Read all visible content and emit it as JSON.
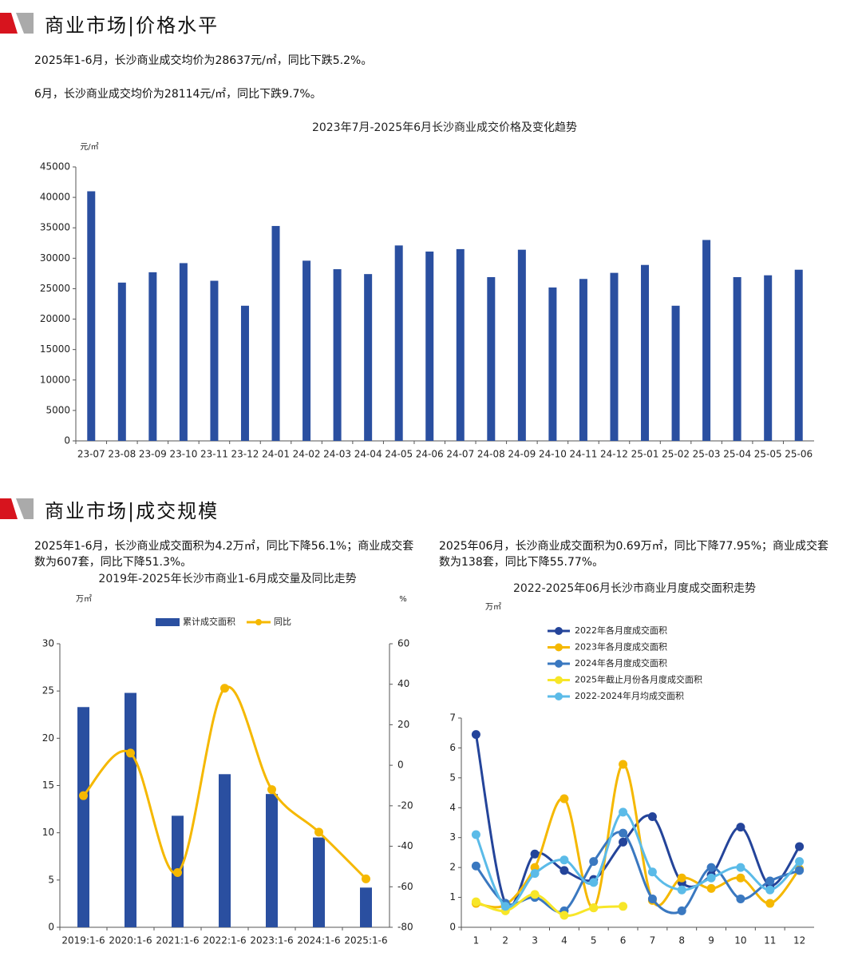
{
  "sections": [
    {
      "title": "商业市场|价格水平",
      "paragraphs": [
        "2025年1-6月，长沙商业成交均价为28637元/㎡，同比下跌5.2%。",
        "6月，长沙商业成交均价为28114元/㎡，同比下跌9.7%。"
      ]
    },
    {
      "title": "商业市场|成交规模",
      "paragraphs": [
        "2025年1-6月，长沙商业成交面积为4.2万㎡，同比下降56.1%；商业成交套数为607套，同比下降51.3%。",
        "2025年06月，长沙商业成交面积为0.69万㎡，同比下降77.95%；商业成交套数为138套，同比下降55.77%。"
      ]
    }
  ],
  "chart_data": [
    {
      "type": "bar",
      "title": "2023年7月-2025年6月长沙商业成交价格及变化趋势",
      "y_label": "元/㎡",
      "categories": [
        "23-07",
        "23-08",
        "23-09",
        "23-10",
        "23-11",
        "23-12",
        "24-01",
        "24-02",
        "24-03",
        "24-04",
        "24-05",
        "24-06",
        "24-07",
        "24-08",
        "24-09",
        "24-10",
        "24-11",
        "24-12",
        "25-01",
        "25-02",
        "25-03",
        "25-04",
        "25-05",
        "25-06"
      ],
      "values": [
        41000,
        26000,
        27700,
        29200,
        26300,
        22200,
        35300,
        29600,
        28200,
        27400,
        32100,
        31100,
        31500,
        26900,
        31400,
        25200,
        26600,
        27600,
        28900,
        22200,
        33000,
        26900,
        27200,
        28114
      ],
      "color": "#2a4fa0",
      "ylim": [
        0,
        45000
      ],
      "yticks": [
        0,
        5000,
        10000,
        15000,
        20000,
        25000,
        30000,
        35000,
        40000,
        45000
      ]
    },
    {
      "type": "combo",
      "title": "2019年-2025年长沙市商业1-6月成交量及同比走势",
      "y_label": "万㎡",
      "y2_label": "%",
      "categories": [
        "2019:1-6",
        "2020:1-6",
        "2021:1-6",
        "2022:1-6",
        "2023:1-6",
        "2024:1-6",
        "2025:1-6"
      ],
      "series": [
        {
          "name": "累计成交面积",
          "type": "bar",
          "color": "#2a4fa0",
          "values": [
            23.3,
            24.8,
            11.8,
            16.2,
            14.1,
            9.5,
            4.2
          ]
        },
        {
          "name": "同比",
          "type": "line",
          "axis": "y2",
          "color": "#f5b800",
          "values": [
            -15,
            6,
            -53,
            38,
            -12,
            -33,
            -56.1
          ]
        }
      ],
      "ylim": [
        0,
        30
      ],
      "yticks": [
        0,
        5,
        10,
        15,
        20,
        25,
        30
      ],
      "y2lim": [
        -80,
        60
      ],
      "y2ticks": [
        -80,
        -60,
        -40,
        -20,
        0,
        20,
        40,
        60
      ]
    },
    {
      "type": "line",
      "title": "2022-2025年06月长沙市商业月度成交面积走势",
      "y_label": "万㎡",
      "categories": [
        "1",
        "2",
        "3",
        "4",
        "5",
        "6",
        "7",
        "8",
        "9",
        "10",
        "11",
        "12"
      ],
      "series": [
        {
          "name": "2022年各月度成交面积",
          "color": "#24449a",
          "values": [
            6.45,
            0.8,
            2.45,
            1.9,
            1.6,
            2.85,
            3.7,
            1.5,
            1.75,
            3.35,
            1.4,
            2.7
          ]
        },
        {
          "name": "2023年各月度成交面积",
          "color": "#f5b800",
          "values": [
            0.8,
            0.75,
            2.0,
            4.3,
            0.65,
            5.45,
            0.9,
            1.65,
            1.3,
            1.65,
            0.8,
            1.95
          ]
        },
        {
          "name": "2024年各月度成交面积",
          "color": "#3a78c0",
          "values": [
            2.05,
            0.8,
            1.0,
            0.55,
            2.2,
            3.15,
            0.95,
            0.55,
            2.0,
            0.95,
            1.55,
            1.9
          ]
        },
        {
          "name": "2025年截止月份各月度成交面积",
          "color": "#f7e628",
          "values": [
            0.85,
            0.55,
            1.1,
            0.4,
            0.65,
            0.7,
            null,
            null,
            null,
            null,
            null,
            null
          ]
        },
        {
          "name": "2022-2024年月均成交面积",
          "color": "#5bbbe8",
          "values": [
            3.1,
            0.7,
            1.8,
            2.25,
            1.5,
            3.85,
            1.85,
            1.25,
            1.65,
            2.0,
            1.25,
            2.2
          ]
        }
      ],
      "ylim": [
        0,
        7
      ],
      "yticks": [
        0,
        1,
        2,
        3,
        4,
        5,
        6,
        7
      ]
    }
  ]
}
